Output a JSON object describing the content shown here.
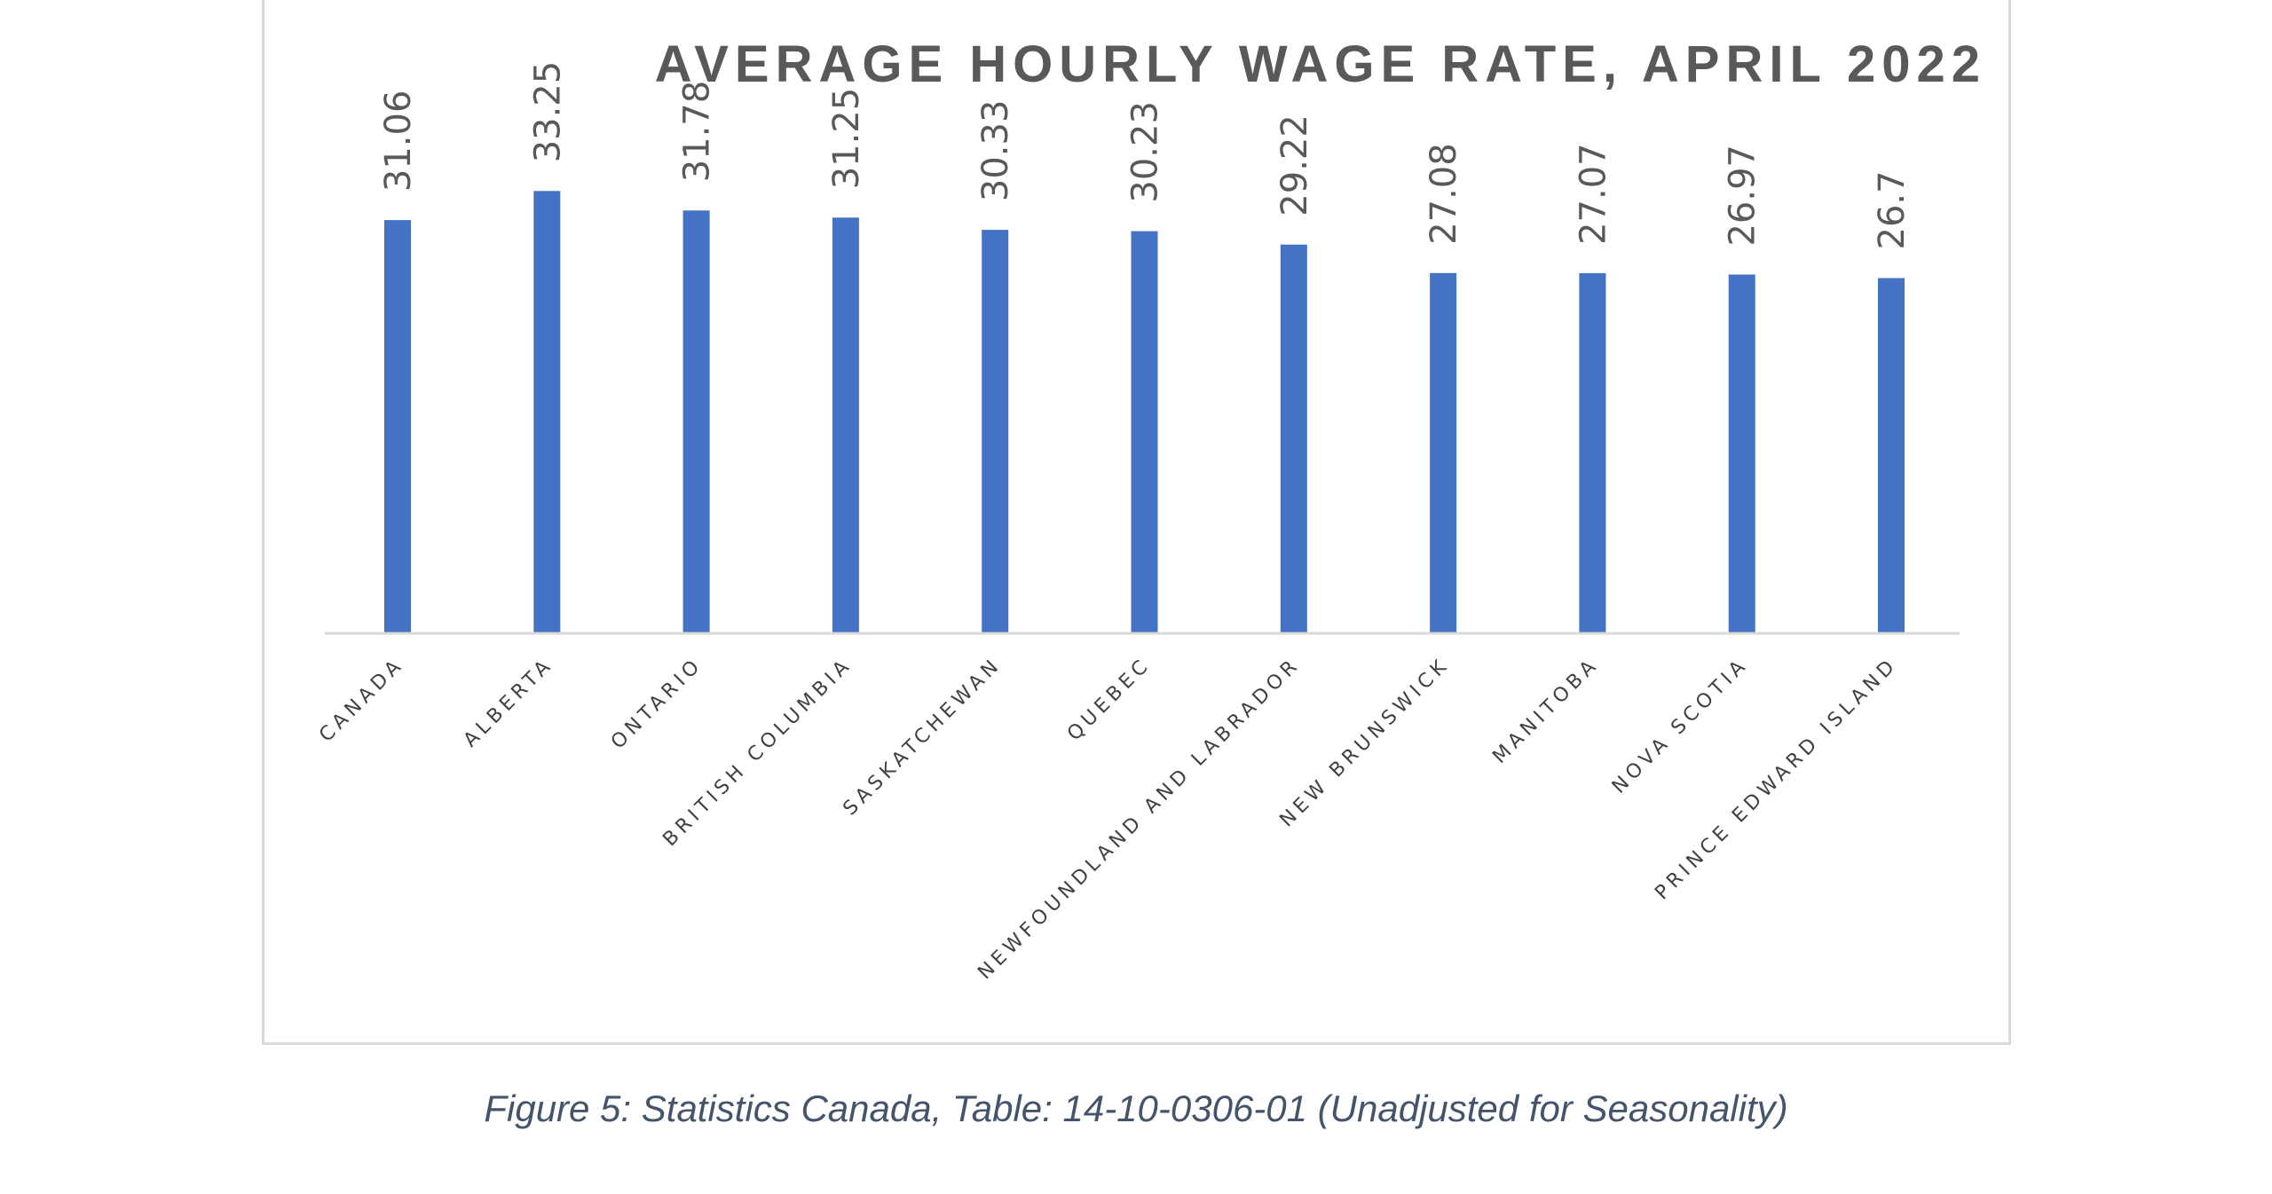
{
  "chart_data": {
    "type": "bar",
    "title": "AVERAGE HOURLY WAGE RATE, APRIL 2022",
    "categories": [
      "CANADA",
      "ALBERTA",
      "ONTARIO",
      "BRITISH COLUMBIA",
      "SASKATCHEWAN",
      "QUEBEC",
      "NEWFOUNDLAND AND LABRADOR",
      "NEW BRUNSWICK",
      "MANITOBA",
      "NOVA SCOTIA",
      "PRINCE EDWARD ISLAND"
    ],
    "values": [
      31.06,
      33.25,
      31.78,
      31.25,
      30.33,
      30.23,
      29.22,
      27.08,
      27.07,
      26.97,
      26.7
    ],
    "value_labels": [
      "31.06",
      "33.25",
      "31.78",
      "31.25",
      "30.33",
      "30.23",
      "29.22",
      "27.08",
      "27.07",
      "26.97",
      "26.7"
    ],
    "ylim": [
      0,
      35
    ],
    "grid": false,
    "legend": "none",
    "bar_color": "#4472c4"
  },
  "caption": "Figure 5: Statistics Canada, Table: 14-10-0306-01 (Unadjusted for Seasonality)"
}
